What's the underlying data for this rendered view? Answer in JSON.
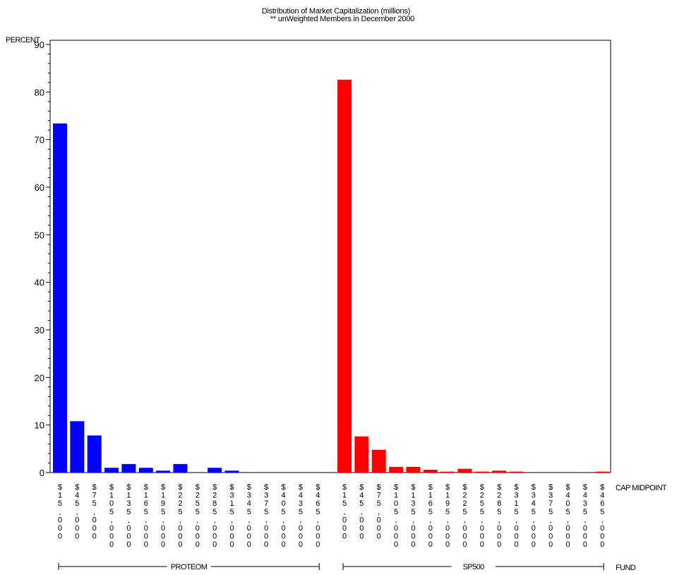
{
  "chart_data": {
    "type": "bar",
    "title": "Distribution of Market Capitalization (millions)",
    "subtitle": "** unWeighted Members in December 2000",
    "ylabel": "PERCENT",
    "xlabel": "CAP MIDPOINT",
    "group_axis_label": "FUND",
    "ylim": [
      0,
      90
    ],
    "yticks": [
      0,
      10,
      20,
      30,
      40,
      50,
      60,
      70,
      80,
      90
    ],
    "legend": "none",
    "grid": false,
    "groups": [
      {
        "name": "PROTEOM",
        "color": "#0000ff",
        "categories": [
          "$15,000",
          "$45,000",
          "$75,000",
          "$105,000",
          "$135,000",
          "$165,000",
          "$195,000",
          "$225,000",
          "$255,000",
          "$285,000",
          "$315,000",
          "$345,000",
          "$375,000",
          "$405,000",
          "$435,000",
          "$465,000"
        ],
        "values": [
          73.4,
          10.8,
          7.8,
          1.0,
          1.8,
          1.0,
          0.4,
          1.8,
          0,
          1.0,
          0.4,
          0,
          0,
          0,
          0,
          0
        ]
      },
      {
        "name": "SP500",
        "color": "#ff0000",
        "categories": [
          "$15,000",
          "$45,000",
          "$75,000",
          "$105,000",
          "$135,000",
          "$165,000",
          "$195,000",
          "$225,000",
          "$255,000",
          "$285,000",
          "$315,000",
          "$345,000",
          "$375,000",
          "$405,000",
          "$435,000",
          "$465,000"
        ],
        "values": [
          82.6,
          7.6,
          4.8,
          1.2,
          1.2,
          0.6,
          0.2,
          0.8,
          0.2,
          0.4,
          0.2,
          0,
          0,
          0,
          0,
          0.2
        ]
      }
    ]
  }
}
